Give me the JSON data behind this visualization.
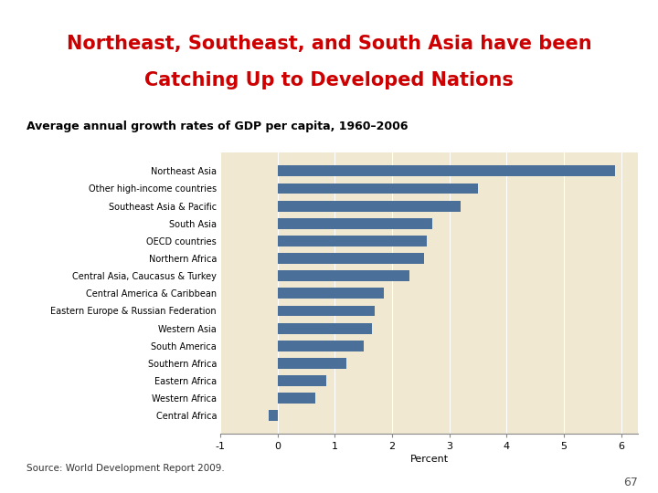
{
  "title_line1": "Northeast, Southeast, and South Asia have been",
  "title_line2": "Catching Up to Developed Nations",
  "subtitle": "Average annual growth rates of GDP per capita, 1960–2006",
  "xlabel": "Percent",
  "source": "Source: World Development Report 2009.",
  "page_number": "67",
  "categories": [
    "Northeast Asia",
    "Other high-income countries",
    "Southeast Asia & Pacific",
    "South Asia",
    "OECD countries",
    "Northern Africa",
    "Central Asia, Caucasus & Turkey",
    "Central America & Caribbean",
    "Eastern Europe & Russian Federation",
    "Western Asia",
    "South America",
    "Southern Africa",
    "Eastern Africa",
    "Western Africa",
    "Central Africa"
  ],
  "values": [
    5.9,
    3.5,
    3.2,
    2.7,
    2.6,
    2.55,
    2.3,
    1.85,
    1.7,
    1.65,
    1.5,
    1.2,
    0.85,
    0.65,
    -0.15
  ],
  "bar_color": "#4a7099",
  "bg_color": "#f0e8d0",
  "title_color": "#cc0000",
  "subtitle_color": "#000000",
  "page_color": "#555555",
  "source_color": "#333333",
  "xlim": [
    -1,
    6.3
  ],
  "xticks": [
    -1,
    0,
    1,
    2,
    3,
    4,
    5,
    6
  ],
  "title_fontsize": 15,
  "subtitle_fontsize": 9,
  "label_fontsize": 7,
  "tick_fontsize": 8,
  "xlabel_fontsize": 8
}
